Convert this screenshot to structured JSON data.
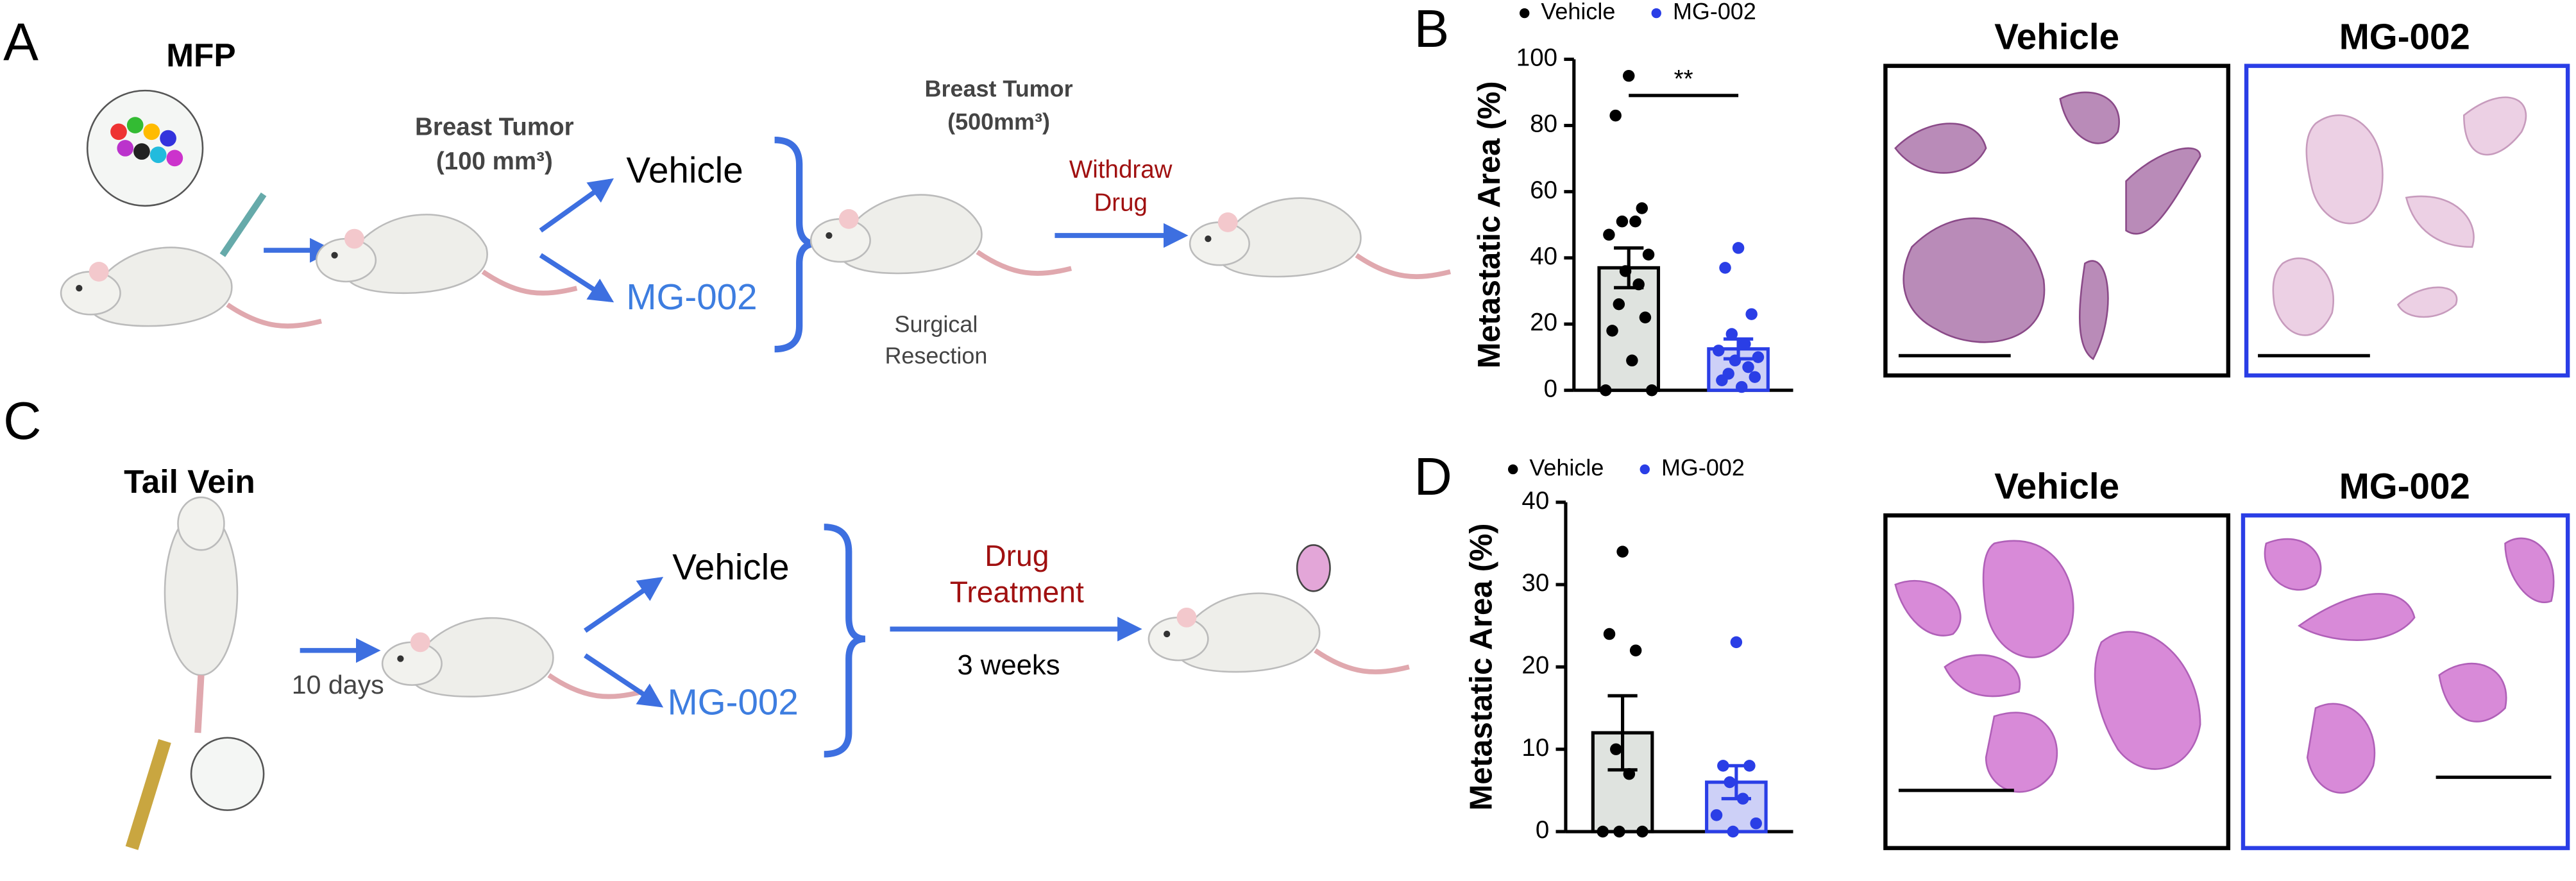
{
  "panel_labels": [
    "A",
    "B",
    "C",
    "D"
  ],
  "panel_a": {
    "site": "MFP",
    "tumor_1": [
      "Breast Tumor",
      "(100 mm³)"
    ],
    "arm_1": "Vehicle",
    "arm_2": "MG-002",
    "tumor_2": [
      "Breast Tumor",
      "(500mm³)"
    ],
    "step": [
      "Withdraw",
      "Drug"
    ],
    "surgery": [
      "Surgical",
      "Resection"
    ]
  },
  "panel_c": {
    "site": "Tail Vein",
    "wait": "10 days",
    "arm_1": "Vehicle",
    "arm_2": "MG-002",
    "step": [
      "Drug",
      "Treatment"
    ],
    "duration": "3 weeks"
  },
  "histology_b": [
    "Vehicle",
    "MG-002"
  ],
  "histology_d": [
    "Vehicle",
    "MG-002"
  ],
  "chart_data": [
    {
      "type": "bar",
      "ylabel": "Metastatic Area (%)",
      "categories": [
        "Vehicle",
        "MG-002"
      ],
      "values": [
        37,
        12.5
      ],
      "errors": [
        6,
        3
      ],
      "points": [
        [
          95,
          83,
          55,
          51,
          51,
          47,
          41,
          36,
          32,
          26,
          22,
          18,
          9,
          0,
          0
        ],
        [
          43,
          37,
          23,
          17,
          14,
          12,
          10,
          9,
          7,
          5,
          4,
          3,
          1
        ]
      ],
      "colors": [
        "#000000",
        "#2a3ee6"
      ],
      "bar_colors": [
        "#dfe3df",
        "#cdd0f7"
      ],
      "ylim": [
        0,
        100
      ],
      "yticks": [
        0,
        20,
        40,
        60,
        80,
        100
      ],
      "significance": "**"
    },
    {
      "type": "bar",
      "ylabel": "Metastatic Area (%)",
      "categories": [
        "Vehicle",
        "MG-002"
      ],
      "values": [
        12,
        6
      ],
      "errors": [
        4.5,
        2
      ],
      "points": [
        [
          34,
          24,
          22,
          10,
          7,
          0,
          0,
          0
        ],
        [
          23,
          8,
          8,
          6,
          4,
          2,
          1,
          0
        ]
      ],
      "colors": [
        "#000000",
        "#2a3ee6"
      ],
      "bar_colors": [
        "#dfe3df",
        "#cdd0f7"
      ],
      "ylim": [
        0,
        40
      ],
      "yticks": [
        0,
        10,
        20,
        30,
        40
      ]
    }
  ]
}
